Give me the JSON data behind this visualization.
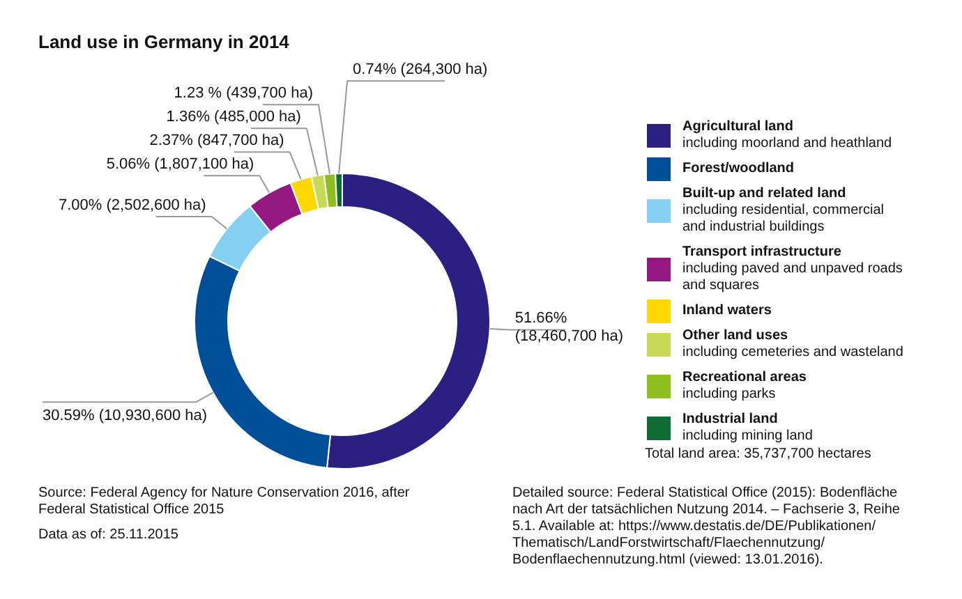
{
  "chart_data": {
    "type": "donut",
    "title": "Land use in Germany in 2014",
    "categories": [
      "Agricultural land\nincluding moorland and heathland",
      "Forest/woodland",
      "Built-up and related land\nincluding residential, commercial\nand industrial buildings",
      "Transport infrastructure\nincluding paved and unpaved roads\nand squares",
      "Inland waters",
      "Other land uses\nincluding cemeteries and wasteland",
      "Recreational areas\nincluding parks",
      "Industrial land\nincluding mining land"
    ],
    "values": [
      51.66,
      30.59,
      7.0,
      5.06,
      2.37,
      1.36,
      1.23,
      0.74
    ],
    "value_labels": [
      "51.66%\n(18,460,700 ha)",
      "30.59% (10,930,600 ha)",
      "7.00% (2,502,600 ha)",
      "5.06% (1,807,100 ha)",
      "2.37% (847,700 ha)",
      "1.36% (485,000 ha)",
      "1.23 % (439,700 ha)",
      "0.74% (264,300 ha)"
    ],
    "colors": [
      "#2c1f82",
      "#004f98",
      "#85cff3",
      "#93187f",
      "#fed800",
      "#c6da58",
      "#8fbf1e",
      "#0f6c35"
    ],
    "legend": "right",
    "annotations": [
      "Total land area: 35,737,700 hectares",
      "Source: Federal Agency for Nature Conservation 2016, after\nFederal Statistical Office 2015",
      "Data as of: 25.11.2015",
      "Detailed source: Federal Statistical Office (2015): Bodenfläche\nnach Art der tatsächlichen Nutzung 2014. – Fachserie 3, Reihe\n5.1. Available at: https://www.destatis.de/DE/Publikationen/\nThematisch/LandForstwirtschaft/Flaechennutzung/\nBodenflaechennutzung.html (viewed: 13.01.2016)."
    ]
  }
}
